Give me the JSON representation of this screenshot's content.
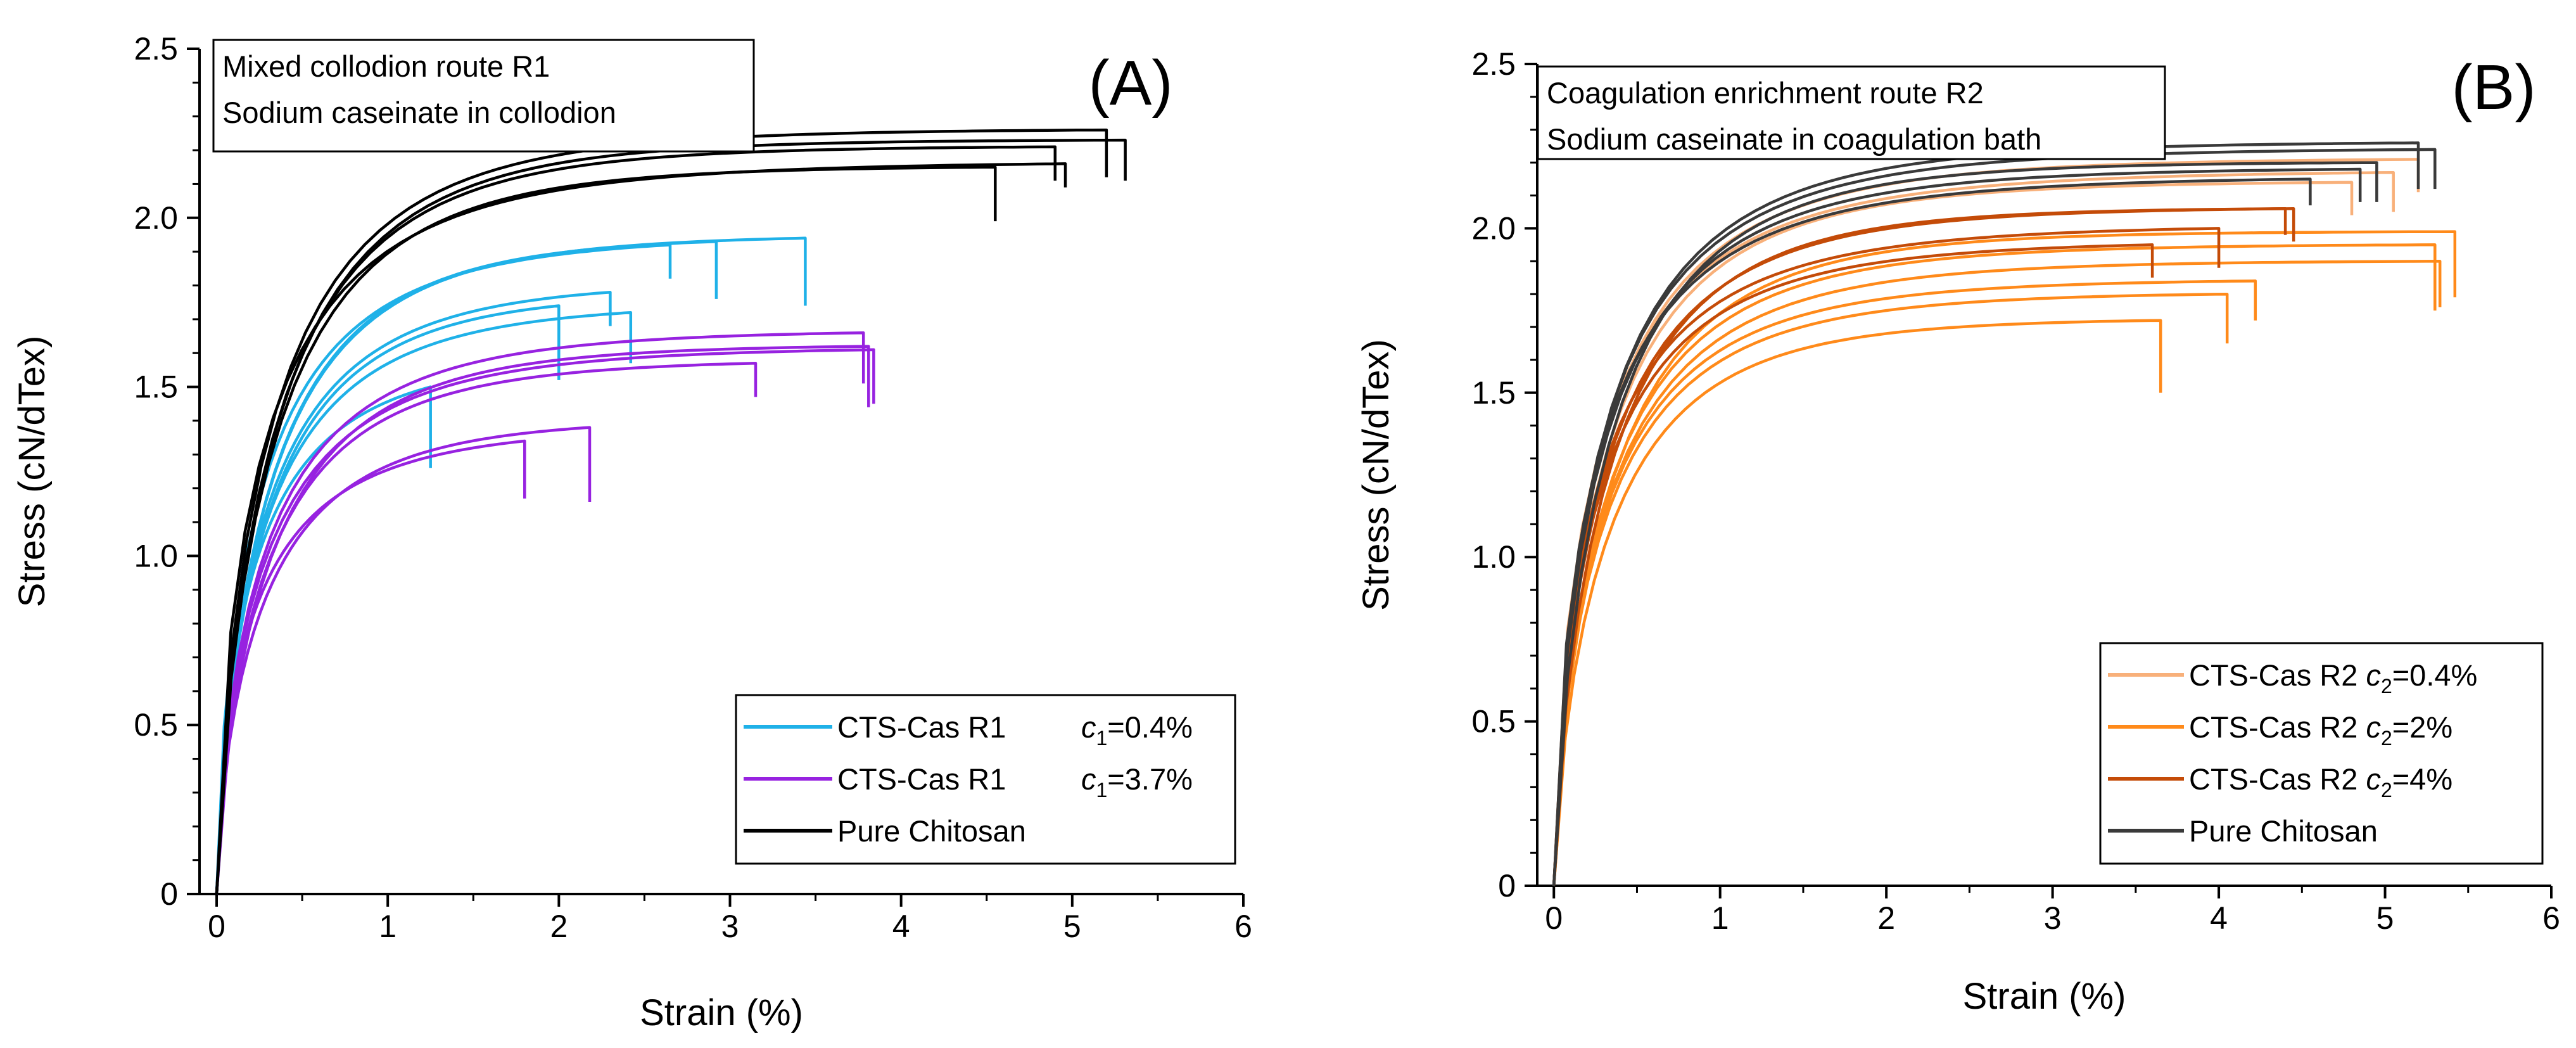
{
  "chart_data": [
    {
      "type": "line",
      "panel_label": "(A)",
      "annotation_lines": [
        "Mixed collodion route R1",
        "Sodium caseinate in collodion"
      ],
      "xlabel": "Strain (%)",
      "ylabel": "Stress (cN/dTex)",
      "xlim": [
        -0.1,
        6
      ],
      "ylim": [
        0,
        2.5
      ],
      "xticks": [
        "0",
        "1",
        "2",
        "3",
        "4",
        "5",
        "6"
      ],
      "yticks": [
        "0",
        "0.5",
        "1.0",
        "1.5",
        "2.0",
        "2.5"
      ],
      "legend": {
        "position": "bottom-right",
        "entries": [
          {
            "label_main": "CTS-Cas R1",
            "label_var": "c",
            "label_sub": "1",
            "label_tail": "=0.4%"
          },
          {
            "label_main": "CTS-Cas R1",
            "label_var": "c",
            "label_sub": "1",
            "label_tail": "=3.7%"
          },
          {
            "label_main": "Pure Chitosan",
            "label_var": "",
            "label_sub": "",
            "label_tail": ""
          }
        ]
      },
      "series": [
        {
          "name": "CTS-Cas R1 c1=0.4%",
          "color": "#1fb1e8",
          "breaks": [
            1.25,
            2.0,
            2.3,
            2.42,
            2.65,
            2.92,
            3.44
          ],
          "maxes": [
            1.5,
            1.74,
            1.78,
            1.72,
            1.92,
            1.93,
            1.94
          ],
          "drops": [
            0.24,
            0.22,
            0.1,
            0.15,
            0.1,
            0.17,
            0.2
          ]
        },
        {
          "name": "CTS-Cas R1 c1=3.7%",
          "color": "#9722e0",
          "breaks": [
            1.8,
            2.18,
            3.15,
            3.78,
            3.81,
            3.84
          ],
          "maxes": [
            1.34,
            1.38,
            1.57,
            1.66,
            1.62,
            1.61
          ],
          "drops": [
            0.17,
            0.22,
            0.1,
            0.15,
            0.18,
            0.16
          ]
        },
        {
          "name": "Pure Chitosan",
          "color": "#000000",
          "breaks": [
            4.55,
            4.9,
            4.96,
            5.2,
            5.31
          ],
          "maxes": [
            2.15,
            2.21,
            2.16,
            2.26,
            2.23
          ],
          "drops": [
            0.16,
            0.1,
            0.07,
            0.14,
            0.12
          ]
        }
      ]
    },
    {
      "type": "line",
      "panel_label": "(B)",
      "annotation_lines": [
        "Coagulation enrichment route R2",
        "Sodium caseinate in coagulation bath"
      ],
      "xlabel": "Strain (%)",
      "ylabel": "Stress (cN/dTex)",
      "xlim": [
        -0.1,
        6
      ],
      "ylim": [
        0,
        2.5
      ],
      "xticks": [
        "0",
        "1",
        "2",
        "3",
        "4",
        "5",
        "6"
      ],
      "yticks": [
        "0",
        "0.5",
        "1.0",
        "1.5",
        "2.0",
        "2.5"
      ],
      "legend": {
        "position": "bottom-right",
        "entries": [
          {
            "label_main": "CTS-Cas R2 ",
            "label_var": "c",
            "label_sub": "2",
            "label_tail": "=0.4%"
          },
          {
            "label_main": "CTS-Cas R2 ",
            "label_var": "c",
            "label_sub": "2",
            "label_tail": "=2%"
          },
          {
            "label_main": "CTS-Cas R2 ",
            "label_var": "c",
            "label_sub": "2",
            "label_tail": "=4%"
          },
          {
            "label_main": "Pure Chitosan",
            "label_var": "",
            "label_sub": "",
            "label_tail": ""
          }
        ]
      },
      "series": [
        {
          "name": "CTS-Cas R2 c2=0.4%",
          "color": "#f8b07a",
          "breaks": [
            4.8,
            5.05,
            5.2
          ],
          "maxes": [
            2.14,
            2.17,
            2.21
          ],
          "drops": [
            0.1,
            0.12,
            0.1
          ]
        },
        {
          "name": "CTS-Cas R2 c2=2%",
          "color": "#ff8a1a",
          "breaks": [
            3.65,
            4.05,
            4.22,
            5.3,
            5.33,
            5.42
          ],
          "maxes": [
            1.72,
            1.8,
            1.84,
            1.95,
            1.9,
            1.99
          ],
          "drops": [
            0.22,
            0.15,
            0.12,
            0.2,
            0.14,
            0.2
          ]
        },
        {
          "name": "CTS-Cas R2 c2=4%",
          "color": "#c44b08",
          "breaks": [
            3.6,
            4.0,
            4.4,
            4.45
          ],
          "maxes": [
            1.95,
            2.0,
            2.06,
            2.06
          ],
          "drops": [
            0.1,
            0.12,
            0.08,
            0.1
          ]
        },
        {
          "name": "Pure Chitosan",
          "color": "#3a3a3a",
          "breaks": [
            4.55,
            4.85,
            4.95,
            5.2,
            5.3
          ],
          "maxes": [
            2.15,
            2.18,
            2.2,
            2.26,
            2.24
          ],
          "drops": [
            0.08,
            0.1,
            0.12,
            0.14,
            0.12
          ]
        }
      ]
    }
  ]
}
